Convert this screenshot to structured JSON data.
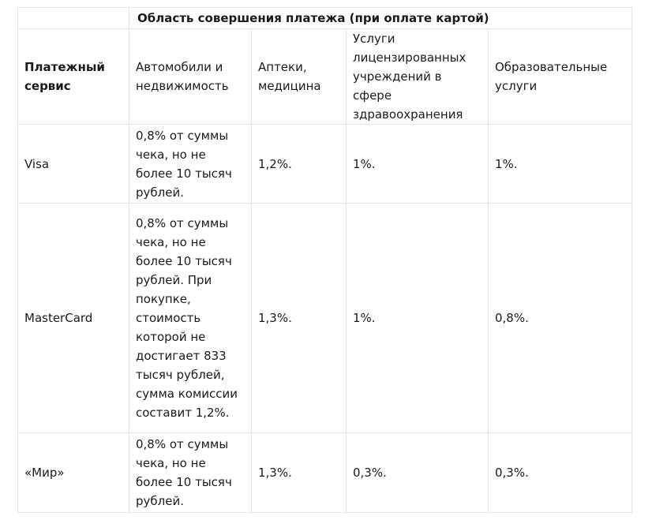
{
  "table": {
    "title": "Область совершения платежа (при оплате картой)",
    "header": {
      "service": "Платежный сервис",
      "columns": [
        "Автомобили и недвижимость",
        "Аптеки, медицина",
        "Услуги лицензированных учреждений в сфере здравоохранения",
        "Образовательные услуги"
      ]
    },
    "rows": [
      {
        "service": "Visa",
        "values": [
          "0,8% от суммы чека, но не более 10 тысяч рублей.",
          "1,2%.",
          "1%.",
          "1%."
        ]
      },
      {
        "service": "MasterCard",
        "values": [
          "0,8% от суммы чека, но не более 10 тысяч рублей. При покупке, стоимость которой не достигает 833 тысяч рублей, сумма комиссии составит 1,2%.",
          "1,3%.",
          "1%.",
          "0,8%."
        ]
      },
      {
        "service": "«Мир»",
        "values": [
          "0,8% от суммы чека, но не более 10 тысяч рублей.",
          "1,3%.",
          "0,3%.",
          "0,3%."
        ]
      }
    ]
  }
}
